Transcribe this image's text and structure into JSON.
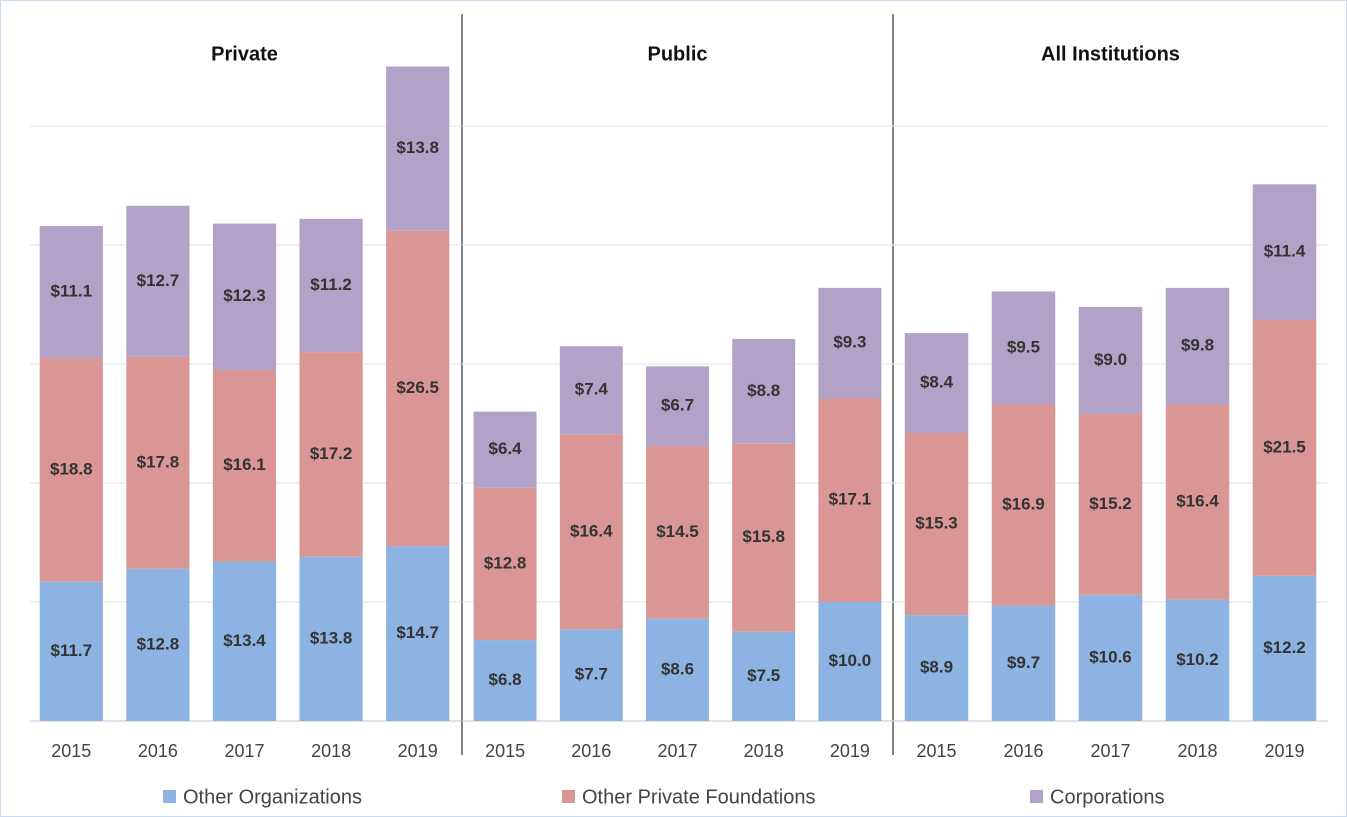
{
  "chart_data": [
    {
      "type": "bar",
      "stacked": true,
      "title": "Private",
      "categories": [
        "2015",
        "2016",
        "2017",
        "2018",
        "2019"
      ],
      "ylim": [
        0,
        60
      ],
      "yticks": [
        0,
        10,
        20,
        30,
        40,
        50
      ],
      "grid": true,
      "series": [
        {
          "name": "Other Organizations",
          "color": "#8db3e2",
          "values": [
            11.7,
            12.8,
            13.4,
            13.8,
            14.7
          ],
          "value_labels": [
            "$11.7",
            "$12.8",
            "$13.4",
            "$13.8",
            "$14.7"
          ]
        },
        {
          "name": "Other Private Foundations",
          "color": "#d99694",
          "values": [
            18.8,
            17.8,
            16.1,
            17.2,
            26.5
          ],
          "value_labels": [
            "$18.8",
            "$17.8",
            "$16.1",
            "$17.2",
            "$26.5"
          ]
        },
        {
          "name": "Corporations",
          "color": "#b3a2c7",
          "values": [
            11.1,
            12.7,
            12.3,
            11.2,
            13.8
          ],
          "value_labels": [
            "$11.1",
            "$12.7",
            "$12.3",
            "$11.2",
            "$13.8"
          ]
        }
      ]
    },
    {
      "type": "bar",
      "stacked": true,
      "title": "Public",
      "categories": [
        "2015",
        "2016",
        "2017",
        "2018",
        "2019"
      ],
      "ylim": [
        0,
        60
      ],
      "yticks": [
        0,
        10,
        20,
        30,
        40,
        50
      ],
      "grid": true,
      "series": [
        {
          "name": "Other Organizations",
          "color": "#8db3e2",
          "values": [
            6.8,
            7.7,
            8.6,
            7.5,
            10
          ],
          "value_labels": [
            "$6.8",
            "$7.7",
            "$8.6",
            "$7.5",
            "$10.0"
          ]
        },
        {
          "name": "Other Private Foundations",
          "color": "#d99694",
          "values": [
            12.8,
            16.4,
            14.5,
            15.8,
            17.1
          ],
          "value_labels": [
            "$12.8",
            "$16.4",
            "$14.5",
            "$15.8",
            "$17.1"
          ]
        },
        {
          "name": "Corporations",
          "color": "#b3a2c7",
          "values": [
            6.4,
            7.4,
            6.7,
            8.8,
            9.3
          ],
          "value_labels": [
            "$6.4",
            "$7.4",
            "$6.7",
            "$8.8",
            "$9.3"
          ]
        }
      ]
    },
    {
      "type": "bar",
      "stacked": true,
      "title": "All Institutions",
      "categories": [
        "2015",
        "2016",
        "2017",
        "2018",
        "2019"
      ],
      "ylim": [
        0,
        60
      ],
      "yticks": [
        0,
        10,
        20,
        30,
        40,
        50
      ],
      "grid": true,
      "series": [
        {
          "name": "Other Organizations",
          "color": "#8db3e2",
          "values": [
            8.9,
            9.7,
            10.6,
            10.2,
            12.2
          ],
          "value_labels": [
            "$8.9",
            "$9.7",
            "$10.6",
            "$10.2",
            "$12.2"
          ]
        },
        {
          "name": "Other Private Foundations",
          "color": "#d99694",
          "values": [
            15.3,
            16.9,
            15.2,
            16.4,
            21.5
          ],
          "value_labels": [
            "$15.3",
            "$16.9",
            "$15.2",
            "$16.4",
            "$21.5"
          ]
        },
        {
          "name": "Corporations",
          "color": "#b3a2c7",
          "values": [
            8.4,
            9.5,
            9.0,
            9.8,
            11.4
          ],
          "value_labels": [
            "$8.4",
            "$9.5",
            "$9.0",
            "$9.8",
            "$11.4"
          ]
        }
      ]
    }
  ]
}
